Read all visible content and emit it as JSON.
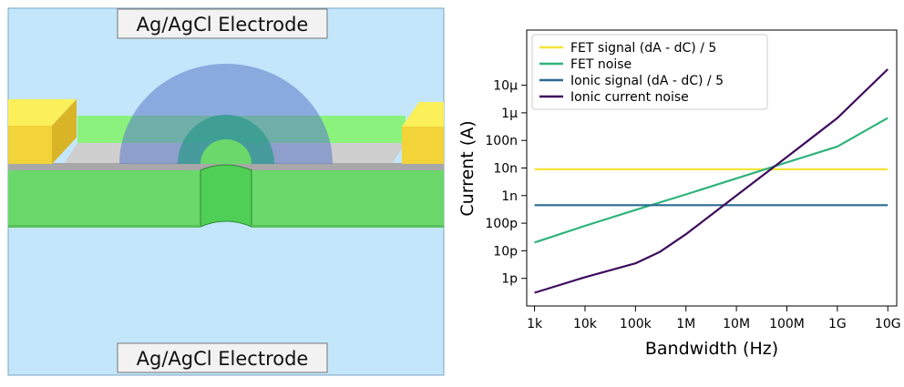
{
  "diagram": {
    "top_electrode_label": "Ag/AgCl Electrode",
    "bottom_electrode_label": "Ag/AgCl Electrode",
    "colors": {
      "electrolyte": "#c3e6fb",
      "membrane": "#6ad86a",
      "membrane_top": "#8cf27e",
      "oxide": "#bdbdbd",
      "contact": "#f2d338",
      "contact_top": "#fbef5a",
      "ion_cloud": "#5a78c8",
      "pore_halo": "#2f9a8e"
    }
  },
  "chart_data": {
    "type": "line",
    "xlabel": "Bandwidth (Hz)",
    "ylabel": "Current (A)",
    "xscale": "log",
    "yscale": "log",
    "xlim": [
      700,
      15000000000
    ],
    "ylim": [
      1e-13,
      0.001
    ],
    "xticks": [
      {
        "value": 1000,
        "label": "1k"
      },
      {
        "value": 10000,
        "label": "10k"
      },
      {
        "value": 100000,
        "label": "100k"
      },
      {
        "value": 1000000,
        "label": "1M"
      },
      {
        "value": 10000000,
        "label": "10M"
      },
      {
        "value": 100000000,
        "label": "100M"
      },
      {
        "value": 1000000000,
        "label": "1G"
      },
      {
        "value": 10000000000,
        "label": "10G"
      }
    ],
    "yticks": [
      {
        "value": 1e-12,
        "label": "1p"
      },
      {
        "value": 1e-11,
        "label": "10p"
      },
      {
        "value": 1e-10,
        "label": "100p"
      },
      {
        "value": 1e-09,
        "label": "1n"
      },
      {
        "value": 1e-08,
        "label": "10n"
      },
      {
        "value": 1e-07,
        "label": "100n"
      },
      {
        "value": 1e-06,
        "label": "1μ"
      },
      {
        "value": 1e-05,
        "label": "10μ"
      }
    ],
    "grid": false,
    "legend_position": "top-left",
    "series": [
      {
        "name": "FET signal (dA - dC) / 5",
        "color": "#f7e43a",
        "x": [
          1000,
          10000000000
        ],
        "y": [
          9e-09,
          9e-09
        ]
      },
      {
        "name": "FET noise",
        "color": "#2fb37c",
        "x": [
          1000,
          10000,
          100000,
          1000000,
          10000000,
          100000000,
          1000000000,
          10000000000
        ],
        "y": [
          2e-11,
          8e-11,
          3e-10,
          1.1e-09,
          4.2e-09,
          1.6e-08,
          6e-08,
          6.5e-07
        ]
      },
      {
        "name": "Ionic signal (dA - dC) / 5",
        "color": "#2a6b93",
        "x": [
          1000,
          10000000000
        ],
        "y": [
          4.5e-10,
          4.5e-10
        ]
      },
      {
        "name": "Ionic current noise",
        "color": "#3d0b5e",
        "x": [
          1000,
          10000,
          100000,
          300000,
          1000000,
          10000000,
          100000000,
          1000000000,
          10000000000
        ],
        "y": [
          3e-13,
          1.1e-12,
          3.5e-12,
          9e-12,
          4e-11,
          1e-09,
          2.5e-08,
          6.5e-07,
          3.8e-05
        ]
      }
    ]
  }
}
